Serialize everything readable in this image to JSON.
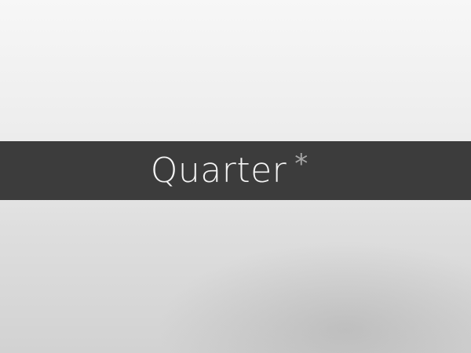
{
  "banner": {
    "title": "Quarter",
    "marker": "*"
  },
  "colors": {
    "banner_background": "#3c3c3c",
    "title_text": "#f4f4f4",
    "marker_text": "#a6a6a6"
  }
}
